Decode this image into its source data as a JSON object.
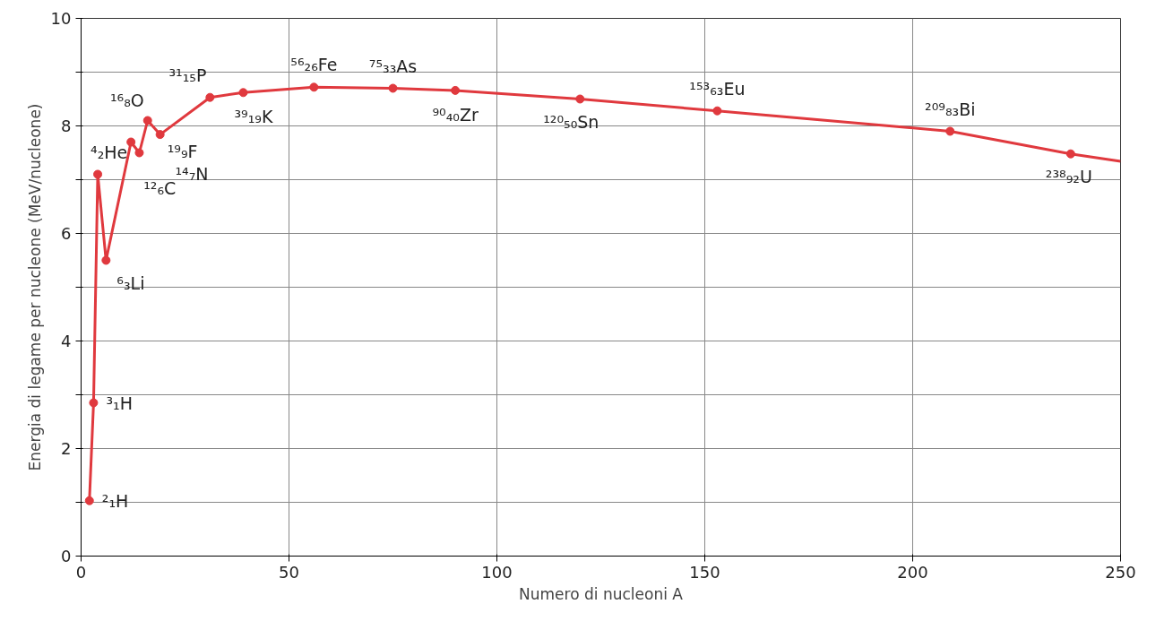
{
  "chart_data": {
    "type": "line",
    "xlabel": "Numero di nucleoni A",
    "ylabel": "Energia di legame per nucleone (MeV/nucleone)",
    "xlim": [
      0,
      250
    ],
    "ylim": [
      0,
      10
    ],
    "xticks": [
      0,
      50,
      100,
      150,
      200,
      250
    ],
    "yticks": [
      0,
      {
        "value": 1,
        "label": null
      },
      2,
      {
        "value": 3,
        "label": null
      },
      4,
      {
        "value": 5,
        "label": null
      },
      6,
      {
        "value": 7,
        "label": null
      },
      8,
      {
        "value": 9,
        "label": null
      },
      10
    ],
    "grid": true,
    "series": [
      {
        "color": "#e0393e",
        "marker": "none",
        "x": [
          2,
          3,
          4,
          6,
          12,
          14,
          16,
          19,
          31,
          39,
          56,
          75,
          90,
          120,
          153,
          209,
          238,
          250
        ],
        "values": [
          1.03,
          2.85,
          7.1,
          5.5,
          7.7,
          7.5,
          8.1,
          7.84,
          8.53,
          8.62,
          8.72,
          8.7,
          8.66,
          8.5,
          8.28,
          7.9,
          7.48,
          7.34
        ]
      },
      {
        "type": "scatter",
        "color": "#e0393e",
        "marker": "circle",
        "x": [
          2,
          3,
          4,
          6,
          12,
          14,
          16,
          19,
          31,
          39,
          56,
          75,
          90,
          120,
          153,
          209,
          238
        ],
        "values": [
          1.03,
          2.85,
          7.1,
          5.5,
          7.7,
          7.5,
          8.1,
          7.84,
          8.53,
          8.62,
          8.72,
          8.7,
          8.66,
          8.5,
          8.28,
          7.9,
          7.48
        ]
      }
    ],
    "annotations": [
      {
        "text": "²₁H",
        "x": 2,
        "y": 1.03
      },
      {
        "text": "³₁H",
        "x": 3,
        "y": 2.85
      },
      {
        "text": "⁴₂He",
        "x": 4,
        "y": 7.1
      },
      {
        "text": "⁶₃Li",
        "x": 6,
        "y": 5.5
      },
      {
        "text": "¹²₆C",
        "x": 12,
        "y": 7.7
      },
      {
        "text": "¹⁴₇N",
        "x": 14,
        "y": 7.5
      },
      {
        "text": "¹⁶₈O",
        "x": 16,
        "y": 8.1
      },
      {
        "text": "¹⁹₉F",
        "x": 19,
        "y": 7.84
      },
      {
        "text": "³¹₁₅P",
        "x": 31,
        "y": 8.53
      },
      {
        "text": "³⁹₁₉K",
        "x": 39,
        "y": 8.62
      },
      {
        "text": "⁵⁶₂₆Fe",
        "x": 56,
        "y": 8.72
      },
      {
        "text": "⁷⁵₃₃As",
        "x": 75,
        "y": 8.7
      },
      {
        "text": "⁹⁰₄₀Zr",
        "x": 90,
        "y": 8.66
      },
      {
        "text": "¹²⁰₅₀Sn",
        "x": 120,
        "y": 8.5
      },
      {
        "text": "¹⁵³₆₃Eu",
        "x": 153,
        "y": 8.28
      },
      {
        "text": "²⁰⁹₈₃Bi",
        "x": 209,
        "y": 7.9
      },
      {
        "text": "²³⁸₉₂U",
        "x": 238,
        "y": 7.48
      }
    ]
  }
}
